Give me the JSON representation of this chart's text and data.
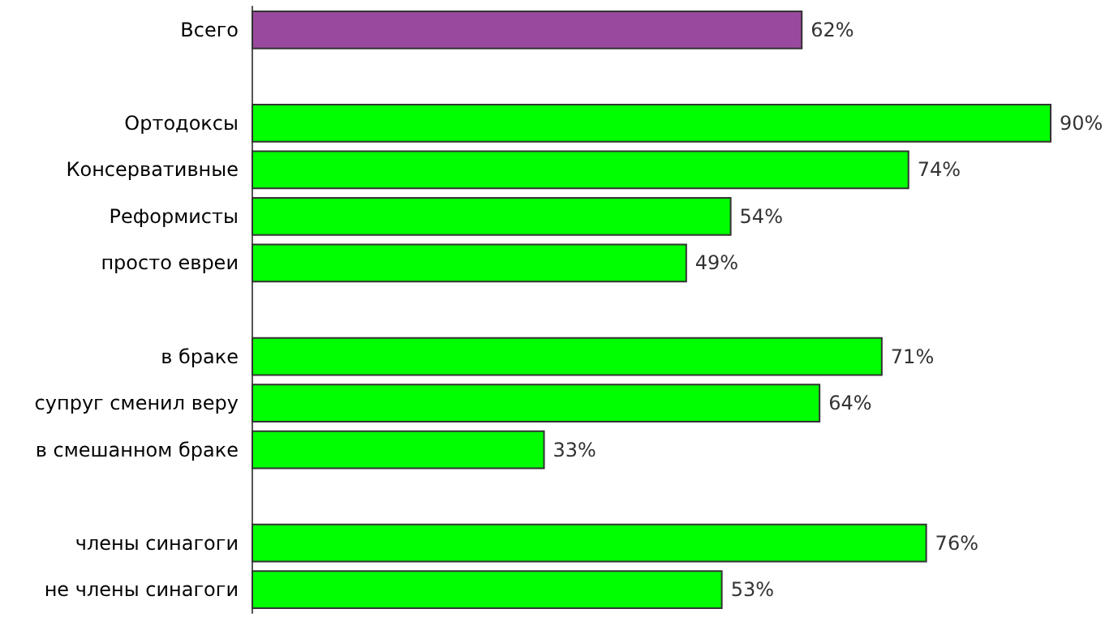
{
  "chart_data": {
    "type": "bar",
    "orientation": "horizontal",
    "categories": [
      "Всего",
      null,
      "Ортодоксы",
      "Консервативные",
      "Реформисты",
      "просто евреи",
      null,
      "в браке",
      "супруг сменил веру",
      "в смешанном браке",
      null,
      "члены синагоги",
      "не члены синагоги"
    ],
    "values": [
      62,
      null,
      90,
      74,
      54,
      49,
      null,
      71,
      64,
      33,
      null,
      76,
      53
    ],
    "colors": [
      "#9a4a9e",
      null,
      "#00ff00",
      "#00ff00",
      "#00ff00",
      "#00ff00",
      null,
      "#00ff00",
      "#00ff00",
      "#00ff00",
      null,
      "#00ff00",
      "#00ff00"
    ],
    "value_labels": [
      "62%",
      null,
      "90%",
      "74%",
      "54%",
      "49%",
      null,
      "71%",
      "64%",
      "33%",
      null,
      "76%",
      "53%"
    ],
    "grid": false
  }
}
